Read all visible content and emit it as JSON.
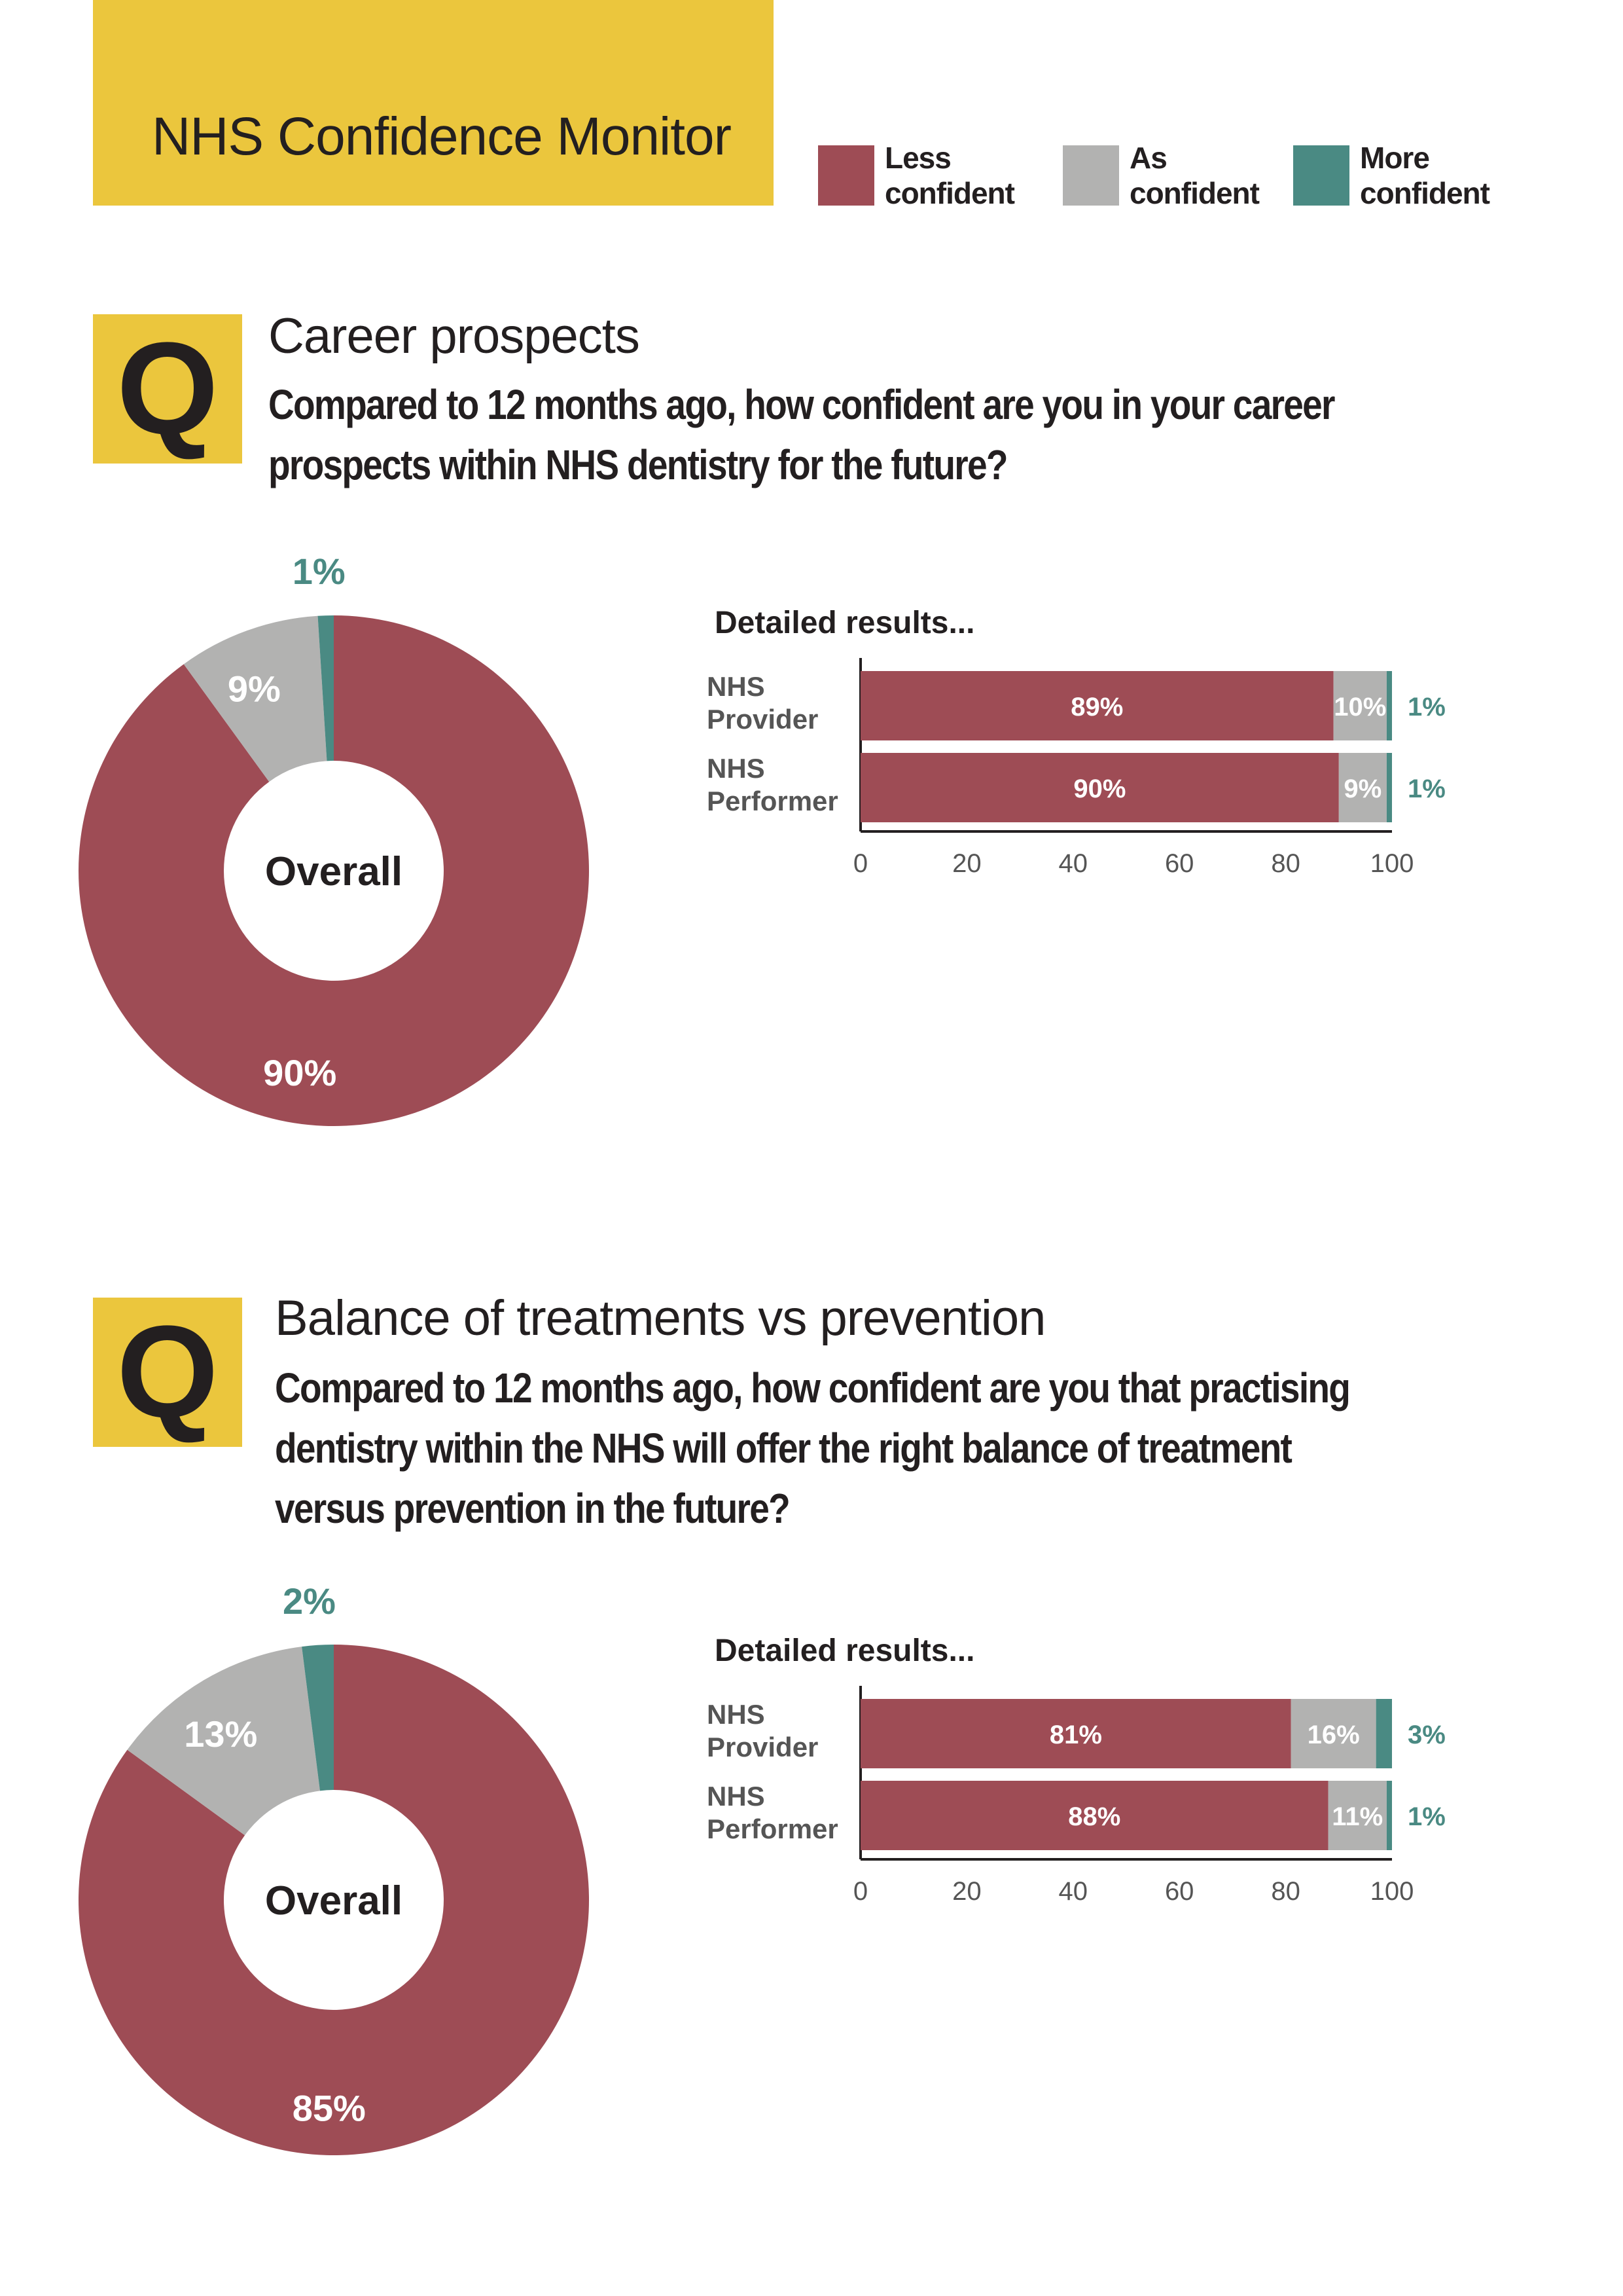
{
  "header": {
    "title": "NHS Confidence Monitor"
  },
  "legend": [
    {
      "line1": "Less",
      "line2": "confident",
      "color": "#9e4c55"
    },
    {
      "line1": "As",
      "line2": "confident",
      "color": "#b2b2b1"
    },
    {
      "line1": "More",
      "line2": "confident",
      "color": "#4a8a83"
    }
  ],
  "colors": {
    "less": "#9e4c55",
    "as": "#b2b2b1",
    "more": "#4a8a83",
    "accent": "#ebc63d"
  },
  "sections": [
    {
      "q_letter": "Q",
      "topic": "Career prospects",
      "question": "Compared to 12 months ago, how confident are you in your career prospects within NHS dentistry for the future?",
      "detail_title": "Detailed results..."
    },
    {
      "q_letter": "Q",
      "topic": "Balance of treatments vs prevention",
      "question": "Compared to 12 months ago, how confident are you that practising dentistry within the NHS will offer the right balance of treatment versus prevention in the future?",
      "detail_title": "Detailed results..."
    }
  ],
  "chart_data": [
    {
      "type": "pie",
      "center_label": "Overall",
      "categories": [
        "Less confident",
        "As confident",
        "More confident"
      ],
      "values": [
        90,
        9,
        1
      ],
      "labels": [
        "90%",
        "9%",
        "1%"
      ]
    },
    {
      "type": "bar",
      "orientation": "horizontal",
      "stacked": true,
      "categories": [
        "NHS Provider",
        "NHS Performer"
      ],
      "category_lines": [
        [
          "NHS",
          "Provider"
        ],
        [
          "NHS",
          "Performer"
        ]
      ],
      "series": [
        {
          "name": "Less confident",
          "values": [
            89,
            90
          ],
          "labels": [
            "89%",
            "90%"
          ]
        },
        {
          "name": "As confident",
          "values": [
            10,
            9
          ],
          "labels": [
            "10%",
            "9%"
          ]
        },
        {
          "name": "More confident",
          "values": [
            1,
            1
          ],
          "labels": [
            "1%",
            "1%"
          ]
        }
      ],
      "xlim": [
        0,
        100
      ],
      "xticks": [
        0,
        20,
        40,
        60,
        80,
        100
      ]
    },
    {
      "type": "pie",
      "center_label": "Overall",
      "categories": [
        "Less confident",
        "As confident",
        "More confident"
      ],
      "values": [
        85,
        13,
        2
      ],
      "labels": [
        "85%",
        "13%",
        "2%"
      ]
    },
    {
      "type": "bar",
      "orientation": "horizontal",
      "stacked": true,
      "categories": [
        "NHS Provider",
        "NHS Performer"
      ],
      "category_lines": [
        [
          "NHS",
          "Provider"
        ],
        [
          "NHS",
          "Performer"
        ]
      ],
      "series": [
        {
          "name": "Less confident",
          "values": [
            81,
            88
          ],
          "labels": [
            "81%",
            "88%"
          ]
        },
        {
          "name": "As confident",
          "values": [
            16,
            11
          ],
          "labels": [
            "16%",
            "11%"
          ]
        },
        {
          "name": "More confident",
          "values": [
            3,
            1
          ],
          "labels": [
            "3%",
            "1%"
          ]
        }
      ],
      "xlim": [
        0,
        100
      ],
      "xticks": [
        0,
        20,
        40,
        60,
        80,
        100
      ]
    }
  ]
}
